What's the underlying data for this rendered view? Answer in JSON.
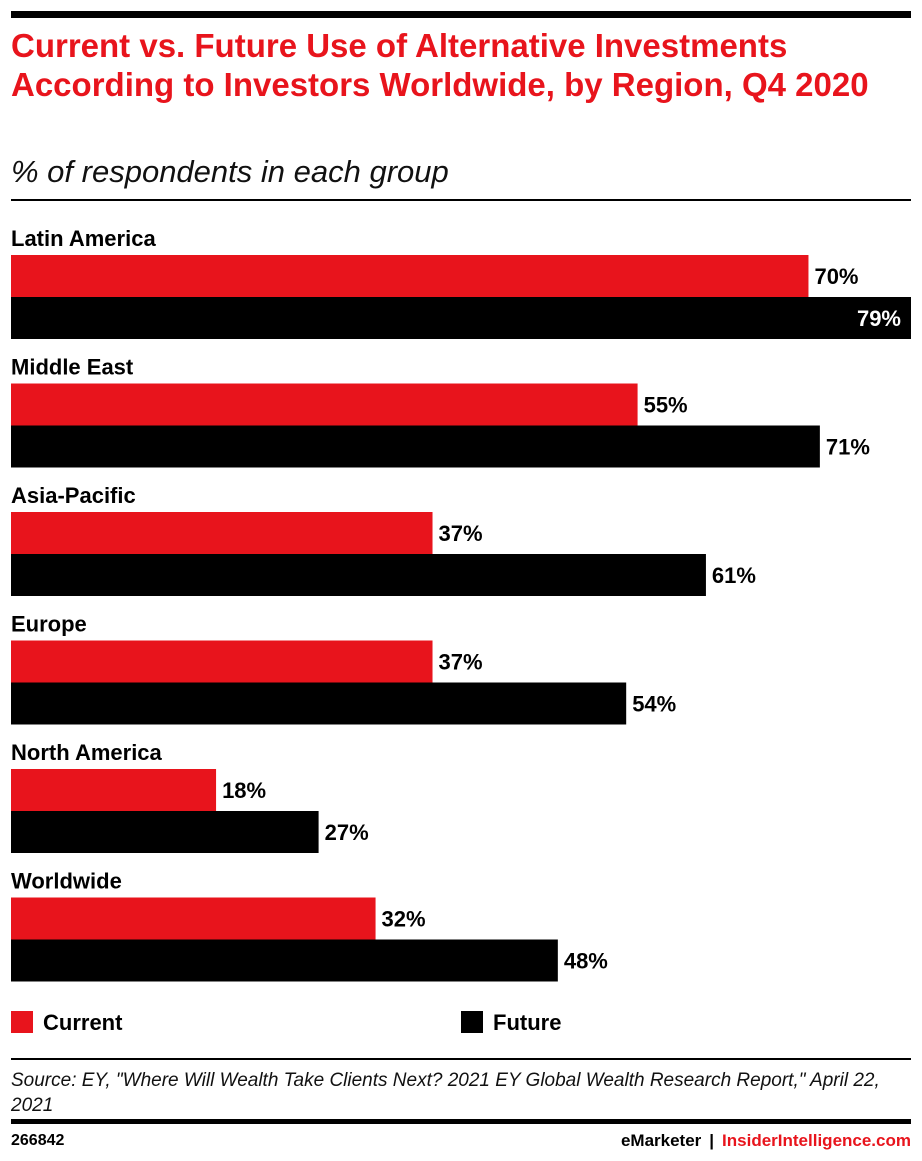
{
  "header": {
    "title": "Current vs. Future Use of Alternative Investments According to Investors Worldwide, by Region, Q4 2020",
    "subtitle": "% of respondents in each group"
  },
  "colors": {
    "current": "#e8141c",
    "future": "#000000",
    "title": "#e8141c"
  },
  "chart_data": {
    "type": "bar",
    "orientation": "horizontal",
    "categories": [
      "Latin America",
      "Middle East",
      "Asia-Pacific",
      "Europe",
      "North America",
      "Worldwide"
    ],
    "series": [
      {
        "name": "Current",
        "values": [
          70,
          55,
          37,
          37,
          18,
          32
        ],
        "labels": [
          "70%",
          "55%",
          "37%",
          "37%",
          "18%",
          "32%"
        ]
      },
      {
        "name": "Future",
        "values": [
          79,
          71,
          61,
          54,
          27,
          48
        ],
        "labels": [
          "79%",
          "71%",
          "61%",
          "54%",
          "27%",
          "48%"
        ]
      }
    ],
    "xlim": [
      0,
      79
    ],
    "grid": false,
    "legend_position": "bottom"
  },
  "legend": {
    "current_label": "Current",
    "future_label": "Future"
  },
  "footer": {
    "source": "Source: EY, \"Where Will Wealth Take Clients Next? 2021 EY Global Wealth Research Report,\" April 22, 2021",
    "chart_id": "266842",
    "brand_primary": "eMarketer",
    "separator": "|",
    "brand_secondary": "InsiderIntelligence.com"
  }
}
